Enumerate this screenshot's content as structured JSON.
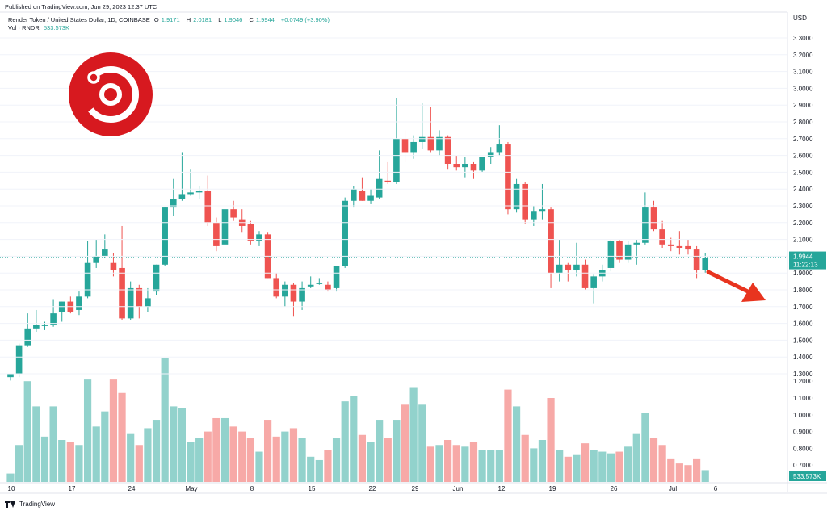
{
  "header": {
    "published": "Published on TradingView.com, Jun 29, 2023 12:37 UTC"
  },
  "legend": {
    "symbol": "Render Token / United States Dollar, 1D, COINBASE",
    "o_label": "O",
    "o_value": "1.9171",
    "h_label": "H",
    "h_value": "2.0181",
    "l_label": "L",
    "l_value": "1.9046",
    "c_label": "C",
    "c_value": "1.9944",
    "change": "+0.0749 (+3.90%)",
    "vol_label": "Vol · RNDR",
    "vol_value": "533.573K"
  },
  "footer": {
    "brand": "TradingView"
  },
  "colors": {
    "up": "#26a69a",
    "down": "#ef5350",
    "up_vol": "#92d2cc",
    "down_vol": "#f7a9a7",
    "logo": "#d7191f",
    "arrow": "#e8341f"
  },
  "logo_icon": "render-token-logo-icon",
  "arrow_icon": "down-right-arrow-icon",
  "chart_data": {
    "type": "candlestick",
    "currency": "USD",
    "yticks": [
      "1.3000",
      "1.4000",
      "1.5000",
      "1.6000",
      "1.7000",
      "1.8000",
      "1.9000",
      "2.0000",
      "2.1000",
      "2.2000",
      "2.3000",
      "2.4000",
      "2.5000",
      "2.6000",
      "2.7000",
      "2.8000",
      "2.9000",
      "3.0000",
      "3.1000",
      "3.2000",
      "3.3000"
    ],
    "vol_yticks": [
      "0.7000",
      "0.8000",
      "0.9000",
      "1.0000",
      "1.1000",
      "1.2000"
    ],
    "xticks": [
      "10",
      "17",
      "24",
      "May",
      "8",
      "15",
      "22",
      "29",
      "Jun",
      "12",
      "19",
      "26",
      "Jul",
      "6"
    ],
    "last_price": "1.9944",
    "countdown": "11:22:13",
    "last_volume": "533.573K",
    "ylim": [
      1.26,
      3.38
    ],
    "candles": [
      {
        "o": 1.28,
        "h": 1.3,
        "l": 1.26,
        "c": 1.3,
        "v": 0.65
      },
      {
        "o": 1.3,
        "h": 1.48,
        "l": 1.28,
        "c": 1.47,
        "v": 0.82
      },
      {
        "o": 1.47,
        "h": 1.66,
        "l": 1.46,
        "c": 1.57,
        "v": 1.2
      },
      {
        "o": 1.57,
        "h": 1.68,
        "l": 1.55,
        "c": 1.59,
        "v": 1.05
      },
      {
        "o": 1.59,
        "h": 1.61,
        "l": 1.56,
        "c": 1.59,
        "v": 0.87
      },
      {
        "o": 1.59,
        "h": 1.74,
        "l": 1.58,
        "c": 1.66,
        "v": 1.05
      },
      {
        "o": 1.67,
        "h": 1.73,
        "l": 1.61,
        "c": 1.73,
        "v": 0.85
      },
      {
        "o": 1.73,
        "h": 1.76,
        "l": 1.66,
        "c": 1.67,
        "v": 0.84
      },
      {
        "o": 1.68,
        "h": 1.79,
        "l": 1.65,
        "c": 1.76,
        "v": 0.82
      },
      {
        "o": 1.76,
        "h": 2.09,
        "l": 1.75,
        "c": 1.96,
        "v": 1.21
      },
      {
        "o": 1.96,
        "h": 2.1,
        "l": 1.93,
        "c": 2.0,
        "v": 0.93
      },
      {
        "o": 2.0,
        "h": 2.13,
        "l": 1.99,
        "c": 2.04,
        "v": 1.02
      },
      {
        "o": 1.96,
        "h": 2.02,
        "l": 1.88,
        "c": 1.92,
        "v": 1.21
      },
      {
        "o": 1.93,
        "h": 2.18,
        "l": 1.62,
        "c": 1.63,
        "v": 1.13
      },
      {
        "o": 1.63,
        "h": 1.85,
        "l": 1.62,
        "c": 1.81,
        "v": 0.89
      },
      {
        "o": 1.81,
        "h": 1.83,
        "l": 1.63,
        "c": 1.7,
        "v": 0.82
      },
      {
        "o": 1.7,
        "h": 1.81,
        "l": 1.67,
        "c": 1.75,
        "v": 0.92
      },
      {
        "o": 1.79,
        "h": 1.95,
        "l": 1.77,
        "c": 1.95,
        "v": 0.97
      },
      {
        "o": 1.95,
        "h": 2.29,
        "l": 1.94,
        "c": 2.29,
        "v": 1.34
      },
      {
        "o": 2.29,
        "h": 2.46,
        "l": 2.24,
        "c": 2.34,
        "v": 1.05
      },
      {
        "o": 2.34,
        "h": 2.62,
        "l": 2.33,
        "c": 2.37,
        "v": 1.04
      },
      {
        "o": 2.37,
        "h": 2.52,
        "l": 2.36,
        "c": 2.38,
        "v": 0.84
      },
      {
        "o": 2.38,
        "h": 2.42,
        "l": 2.34,
        "c": 2.39,
        "v": 0.86
      },
      {
        "o": 2.39,
        "h": 2.48,
        "l": 2.18,
        "c": 2.2,
        "v": 0.9
      },
      {
        "o": 2.2,
        "h": 2.23,
        "l": 2.03,
        "c": 2.06,
        "v": 0.98
      },
      {
        "o": 2.07,
        "h": 2.34,
        "l": 2.06,
        "c": 2.28,
        "v": 0.98
      },
      {
        "o": 2.28,
        "h": 2.33,
        "l": 2.21,
        "c": 2.23,
        "v": 0.93
      },
      {
        "o": 2.22,
        "h": 2.28,
        "l": 2.14,
        "c": 2.18,
        "v": 0.9
      },
      {
        "o": 2.19,
        "h": 2.21,
        "l": 2.07,
        "c": 2.09,
        "v": 0.86
      },
      {
        "o": 2.09,
        "h": 2.15,
        "l": 2.06,
        "c": 2.13,
        "v": 0.78
      },
      {
        "o": 2.13,
        "h": 2.14,
        "l": 1.87,
        "c": 1.87,
        "v": 0.97
      },
      {
        "o": 1.87,
        "h": 1.9,
        "l": 1.75,
        "c": 1.76,
        "v": 0.87
      },
      {
        "o": 1.76,
        "h": 1.85,
        "l": 1.7,
        "c": 1.83,
        "v": 0.9
      },
      {
        "o": 1.83,
        "h": 1.84,
        "l": 1.64,
        "c": 1.73,
        "v": 0.92
      },
      {
        "o": 1.73,
        "h": 1.85,
        "l": 1.68,
        "c": 1.81,
        "v": 0.86
      },
      {
        "o": 1.82,
        "h": 1.88,
        "l": 1.81,
        "c": 1.83,
        "v": 0.75
      },
      {
        "o": 1.84,
        "h": 1.87,
        "l": 1.83,
        "c": 1.84,
        "v": 0.73
      },
      {
        "o": 1.83,
        "h": 1.85,
        "l": 1.79,
        "c": 1.8,
        "v": 0.79
      },
      {
        "o": 1.81,
        "h": 1.92,
        "l": 1.79,
        "c": 1.94,
        "v": 0.86
      },
      {
        "o": 1.94,
        "h": 2.35,
        "l": 1.93,
        "c": 2.33,
        "v": 1.08
      },
      {
        "o": 2.33,
        "h": 2.42,
        "l": 2.29,
        "c": 2.4,
        "v": 1.11
      },
      {
        "o": 2.39,
        "h": 2.47,
        "l": 2.33,
        "c": 2.33,
        "v": 0.88
      },
      {
        "o": 2.33,
        "h": 2.4,
        "l": 2.31,
        "c": 2.36,
        "v": 0.84
      },
      {
        "o": 2.35,
        "h": 2.63,
        "l": 2.34,
        "c": 2.46,
        "v": 0.97
      },
      {
        "o": 2.45,
        "h": 2.56,
        "l": 2.43,
        "c": 2.44,
        "v": 0.86
      },
      {
        "o": 2.44,
        "h": 2.94,
        "l": 2.43,
        "c": 2.7,
        "v": 0.97
      },
      {
        "o": 2.7,
        "h": 2.75,
        "l": 2.56,
        "c": 2.62,
        "v": 1.06
      },
      {
        "o": 2.62,
        "h": 2.72,
        "l": 2.58,
        "c": 2.68,
        "v": 1.16
      },
      {
        "o": 2.68,
        "h": 2.91,
        "l": 2.64,
        "c": 2.71,
        "v": 1.06
      },
      {
        "o": 2.71,
        "h": 2.89,
        "l": 2.62,
        "c": 2.63,
        "v": 0.81
      },
      {
        "o": 2.63,
        "h": 2.75,
        "l": 2.6,
        "c": 2.71,
        "v": 0.82
      },
      {
        "o": 2.71,
        "h": 2.72,
        "l": 2.52,
        "c": 2.55,
        "v": 0.85
      },
      {
        "o": 2.55,
        "h": 2.6,
        "l": 2.51,
        "c": 2.53,
        "v": 0.82
      },
      {
        "o": 2.53,
        "h": 2.59,
        "l": 2.47,
        "c": 2.55,
        "v": 0.81
      },
      {
        "o": 2.55,
        "h": 2.56,
        "l": 2.46,
        "c": 2.51,
        "v": 0.84
      },
      {
        "o": 2.51,
        "h": 2.59,
        "l": 2.5,
        "c": 2.59,
        "v": 0.79
      },
      {
        "o": 2.59,
        "h": 2.65,
        "l": 2.55,
        "c": 2.62,
        "v": 0.79
      },
      {
        "o": 2.62,
        "h": 2.78,
        "l": 2.6,
        "c": 2.67,
        "v": 0.79
      },
      {
        "o": 2.67,
        "h": 2.68,
        "l": 2.25,
        "c": 2.28,
        "v": 1.15
      },
      {
        "o": 2.28,
        "h": 2.46,
        "l": 2.26,
        "c": 2.43,
        "v": 1.05
      },
      {
        "o": 2.43,
        "h": 2.44,
        "l": 2.19,
        "c": 2.22,
        "v": 0.88
      },
      {
        "o": 2.22,
        "h": 2.3,
        "l": 2.18,
        "c": 2.27,
        "v": 0.8
      },
      {
        "o": 2.27,
        "h": 2.43,
        "l": 2.22,
        "c": 2.28,
        "v": 0.85
      },
      {
        "o": 2.28,
        "h": 2.29,
        "l": 1.81,
        "c": 1.9,
        "v": 1.1
      },
      {
        "o": 1.9,
        "h": 2.1,
        "l": 1.85,
        "c": 1.95,
        "v": 0.79
      },
      {
        "o": 1.95,
        "h": 1.96,
        "l": 1.85,
        "c": 1.92,
        "v": 0.75
      },
      {
        "o": 1.92,
        "h": 2.08,
        "l": 1.88,
        "c": 1.95,
        "v": 0.76
      },
      {
        "o": 1.95,
        "h": 1.98,
        "l": 1.8,
        "c": 1.81,
        "v": 0.83
      },
      {
        "o": 1.81,
        "h": 1.89,
        "l": 1.72,
        "c": 1.88,
        "v": 0.79
      },
      {
        "o": 1.88,
        "h": 1.95,
        "l": 1.85,
        "c": 1.92,
        "v": 0.78
      },
      {
        "o": 1.93,
        "h": 2.1,
        "l": 1.91,
        "c": 2.09,
        "v": 0.77
      },
      {
        "o": 2.09,
        "h": 2.1,
        "l": 1.96,
        "c": 1.98,
        "v": 0.78
      },
      {
        "o": 1.98,
        "h": 2.09,
        "l": 1.96,
        "c": 2.07,
        "v": 0.81
      },
      {
        "o": 2.07,
        "h": 2.1,
        "l": 1.95,
        "c": 2.08,
        "v": 0.89
      },
      {
        "o": 2.08,
        "h": 2.38,
        "l": 2.07,
        "c": 2.29,
        "v": 1.01
      },
      {
        "o": 2.29,
        "h": 2.33,
        "l": 2.15,
        "c": 2.16,
        "v": 0.86
      },
      {
        "o": 2.16,
        "h": 2.21,
        "l": 2.05,
        "c": 2.07,
        "v": 0.82
      },
      {
        "o": 2.07,
        "h": 2.11,
        "l": 2.03,
        "c": 2.06,
        "v": 0.74
      },
      {
        "o": 2.06,
        "h": 2.15,
        "l": 2.01,
        "c": 2.05,
        "v": 0.71
      },
      {
        "o": 2.06,
        "h": 2.1,
        "l": 2.01,
        "c": 2.04,
        "v": 0.7
      },
      {
        "o": 2.04,
        "h": 2.06,
        "l": 1.87,
        "c": 1.92,
        "v": 0.74
      },
      {
        "o": 1.92,
        "h": 2.02,
        "l": 1.9,
        "c": 1.99,
        "v": 0.67
      }
    ]
  }
}
